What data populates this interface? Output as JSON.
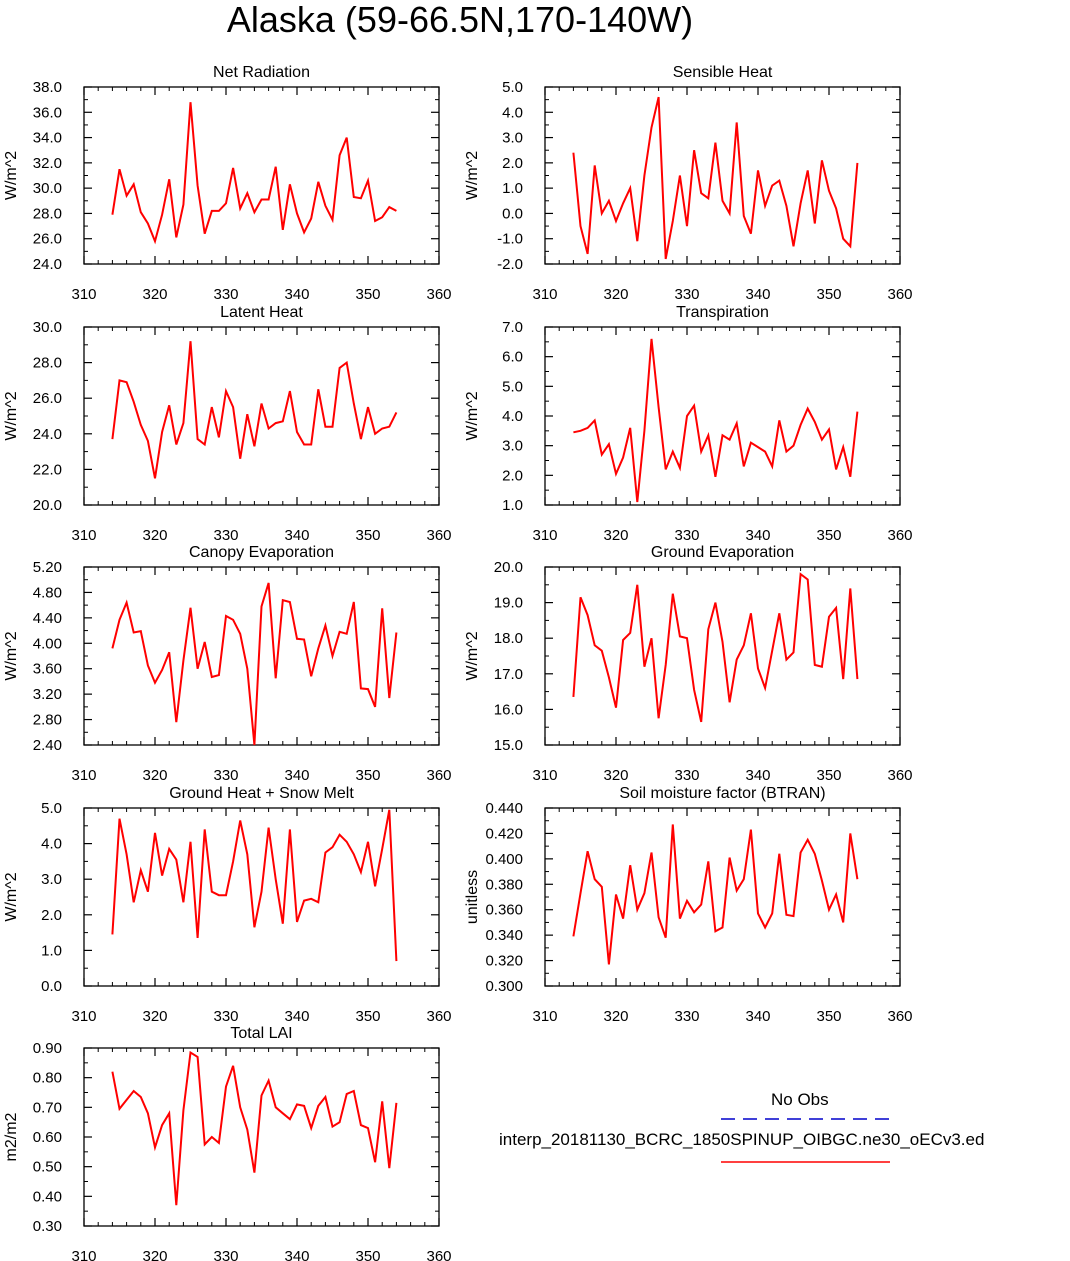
{
  "page_title": "Alaska (59-66.5N,170-140W)",
  "colors": {
    "line": "#ff0000",
    "axis": "#000000",
    "no_obs": "#0000cc"
  },
  "legend": {
    "no_obs": "No Obs",
    "model": "interp_20181130_BCRC_1850SPINUP_OIBGC.ne30_oECv3.ed"
  },
  "chart_data": [
    {
      "type": "line",
      "title": "Net Radiation",
      "ylabel": "W/m^2",
      "xlim": [
        310,
        360
      ],
      "ylim": [
        24,
        38
      ],
      "xticks": [
        "310",
        "320",
        "330",
        "340",
        "350",
        "360"
      ],
      "yticks": [
        "24.0",
        "26.0",
        "28.0",
        "30.0",
        "32.0",
        "34.0",
        "36.0",
        "38.0"
      ],
      "x": [
        314,
        315,
        316,
        317,
        318,
        319,
        320,
        321,
        322,
        323,
        324,
        325,
        326,
        327,
        328,
        329,
        330,
        331,
        332,
        333,
        334,
        335,
        336,
        337,
        338,
        339,
        340,
        341,
        342,
        343,
        344,
        345,
        346,
        347,
        348,
        349,
        350,
        351,
        352,
        353,
        354
      ],
      "values": [
        27.9,
        31.5,
        29.4,
        30.3,
        28.1,
        27.2,
        25.8,
        27.9,
        30.7,
        26.1,
        28.7,
        36.8,
        30.2,
        26.4,
        28.2,
        28.2,
        28.8,
        31.6,
        28.4,
        29.6,
        28.1,
        29.1,
        29.1,
        31.7,
        26.7,
        30.3,
        28.0,
        26.5,
        27.6,
        30.5,
        28.6,
        27.5,
        32.6,
        34.0,
        29.3,
        29.2,
        30.6,
        27.4,
        27.7,
        28.5,
        28.2
      ]
    },
    {
      "type": "line",
      "title": "Sensible Heat",
      "ylabel": "W/m^2",
      "xlim": [
        310,
        360
      ],
      "ylim": [
        -2,
        5
      ],
      "xticks": [
        "310",
        "320",
        "330",
        "340",
        "350",
        "360"
      ],
      "yticks": [
        "-2.0",
        "-1.0",
        "0.0",
        "1.0",
        "2.0",
        "3.0",
        "4.0",
        "5.0"
      ],
      "x": [
        314,
        315,
        316,
        317,
        318,
        319,
        320,
        321,
        322,
        323,
        324,
        325,
        326,
        327,
        328,
        329,
        330,
        331,
        332,
        333,
        334,
        335,
        336,
        337,
        338,
        339,
        340,
        341,
        342,
        343,
        344,
        345,
        346,
        347,
        348,
        349,
        350,
        351,
        352,
        353,
        354
      ],
      "values": [
        2.4,
        -0.5,
        -1.6,
        1.9,
        0.0,
        0.5,
        -0.3,
        0.4,
        1.0,
        -1.1,
        1.5,
        3.4,
        4.6,
        -1.8,
        -0.3,
        1.5,
        -0.5,
        2.5,
        0.8,
        0.6,
        2.8,
        0.5,
        0.0,
        3.6,
        -0.1,
        -0.8,
        1.7,
        0.3,
        1.1,
        1.3,
        0.3,
        -1.3,
        0.4,
        1.7,
        -0.4,
        2.1,
        0.9,
        0.2,
        -1.0,
        -1.3,
        2.0
      ]
    },
    {
      "type": "line",
      "title": "Latent Heat",
      "ylabel": "W/m^2",
      "xlim": [
        310,
        360
      ],
      "ylim": [
        20,
        30
      ],
      "xticks": [
        "310",
        "320",
        "330",
        "340",
        "350",
        "360"
      ],
      "yticks": [
        "20.0",
        "22.0",
        "24.0",
        "26.0",
        "28.0",
        "30.0"
      ],
      "x": [
        314,
        315,
        316,
        317,
        318,
        319,
        320,
        321,
        322,
        323,
        324,
        325,
        326,
        327,
        328,
        329,
        330,
        331,
        332,
        333,
        334,
        335,
        336,
        337,
        338,
        339,
        340,
        341,
        342,
        343,
        344,
        345,
        346,
        347,
        348,
        349,
        350,
        351,
        352,
        353,
        354
      ],
      "values": [
        23.7,
        27.0,
        26.9,
        25.8,
        24.5,
        23.6,
        21.5,
        24.1,
        25.6,
        23.4,
        24.6,
        29.2,
        23.7,
        23.4,
        25.5,
        23.8,
        26.4,
        25.5,
        22.6,
        25.1,
        23.3,
        25.7,
        24.3,
        24.6,
        24.7,
        26.4,
        24.1,
        23.4,
        23.4,
        26.5,
        24.4,
        24.4,
        27.7,
        28.0,
        25.7,
        23.7,
        25.5,
        24.0,
        24.3,
        24.4,
        25.2
      ]
    },
    {
      "type": "line",
      "title": "Transpiration",
      "ylabel": "W/m^2",
      "xlim": [
        310,
        360
      ],
      "ylim": [
        1,
        7
      ],
      "xticks": [
        "310",
        "320",
        "330",
        "340",
        "350",
        "360"
      ],
      "yticks": [
        "1.0",
        "2.0",
        "3.0",
        "4.0",
        "5.0",
        "6.0",
        "7.0"
      ],
      "x": [
        314,
        315,
        316,
        317,
        318,
        319,
        320,
        321,
        322,
        323,
        324,
        325,
        326,
        327,
        328,
        329,
        330,
        331,
        332,
        333,
        334,
        335,
        336,
        337,
        338,
        339,
        340,
        341,
        342,
        343,
        344,
        345,
        346,
        347,
        348,
        349,
        350,
        351,
        352,
        353,
        354
      ],
      "values": [
        3.45,
        3.5,
        3.6,
        3.85,
        2.7,
        3.05,
        2.05,
        2.6,
        3.6,
        1.1,
        3.5,
        6.6,
        4.3,
        2.2,
        2.8,
        2.25,
        4.0,
        4.35,
        2.8,
        3.35,
        1.95,
        3.35,
        3.2,
        3.75,
        2.3,
        3.1,
        2.95,
        2.8,
        2.3,
        3.85,
        2.8,
        3.0,
        3.7,
        4.25,
        3.8,
        3.2,
        3.55,
        2.2,
        2.95,
        1.95,
        4.15
      ]
    },
    {
      "type": "line",
      "title": "Canopy Evaporation",
      "ylabel": "W/m^2",
      "xlim": [
        310,
        360
      ],
      "ylim": [
        2.4,
        5.2
      ],
      "xticks": [
        "310",
        "320",
        "330",
        "340",
        "350",
        "360"
      ],
      "yticks": [
        "2.40",
        "2.80",
        "3.20",
        "3.60",
        "4.00",
        "4.40",
        "4.80",
        "5.20"
      ],
      "x": [
        314,
        315,
        316,
        317,
        318,
        319,
        320,
        321,
        322,
        323,
        324,
        325,
        326,
        327,
        328,
        329,
        330,
        331,
        332,
        333,
        334,
        335,
        336,
        337,
        338,
        339,
        340,
        341,
        342,
        343,
        344,
        345,
        346,
        347,
        348,
        349,
        350,
        351,
        352,
        353,
        354
      ],
      "values": [
        3.92,
        4.37,
        4.64,
        4.17,
        4.19,
        3.65,
        3.38,
        3.58,
        3.86,
        2.76,
        3.73,
        4.56,
        3.6,
        4.02,
        3.47,
        3.5,
        4.43,
        4.37,
        4.15,
        3.6,
        2.4,
        4.58,
        4.95,
        3.45,
        4.68,
        4.65,
        4.07,
        4.06,
        3.48,
        3.92,
        4.28,
        3.8,
        4.18,
        4.15,
        4.65,
        3.29,
        3.28,
        3.0,
        4.55,
        3.14,
        4.17
      ]
    },
    {
      "type": "line",
      "title": "Ground Evaporation",
      "ylabel": "W/m^2",
      "xlim": [
        310,
        360
      ],
      "ylim": [
        15,
        20
      ],
      "xticks": [
        "310",
        "320",
        "330",
        "340",
        "350",
        "360"
      ],
      "yticks": [
        "15.0",
        "16.0",
        "17.0",
        "18.0",
        "19.0",
        "20.0"
      ],
      "x": [
        314,
        315,
        316,
        317,
        318,
        319,
        320,
        321,
        322,
        323,
        324,
        325,
        326,
        327,
        328,
        329,
        330,
        331,
        332,
        333,
        334,
        335,
        336,
        337,
        338,
        339,
        340,
        341,
        342,
        343,
        344,
        345,
        346,
        347,
        348,
        349,
        350,
        351,
        352,
        353,
        354
      ],
      "values": [
        16.35,
        19.15,
        18.65,
        17.8,
        17.65,
        16.9,
        16.05,
        17.95,
        18.15,
        19.5,
        17.2,
        18.0,
        15.75,
        17.25,
        19.25,
        18.05,
        18.0,
        16.55,
        15.65,
        18.25,
        19.0,
        17.9,
        16.2,
        17.4,
        17.8,
        18.7,
        17.15,
        16.6,
        17.65,
        18.7,
        17.4,
        17.6,
        19.8,
        19.65,
        17.25,
        17.2,
        18.6,
        18.85,
        16.85,
        19.4,
        16.85
      ]
    },
    {
      "type": "line",
      "title": "Ground Heat + Snow Melt",
      "ylabel": "W/m^2",
      "xlim": [
        310,
        360
      ],
      "ylim": [
        0,
        5
      ],
      "xticks": [
        "310",
        "320",
        "330",
        "340",
        "350",
        "360"
      ],
      "yticks": [
        "0.0",
        "1.0",
        "2.0",
        "3.0",
        "4.0",
        "5.0"
      ],
      "x": [
        314,
        315,
        316,
        317,
        318,
        319,
        320,
        321,
        322,
        323,
        324,
        325,
        326,
        327,
        328,
        329,
        330,
        331,
        332,
        333,
        334,
        335,
        336,
        337,
        338,
        339,
        340,
        341,
        342,
        343,
        344,
        345,
        346,
        347,
        348,
        349,
        350,
        351,
        352,
        353,
        354
      ],
      "values": [
        1.45,
        4.7,
        3.7,
        2.35,
        3.25,
        2.65,
        4.3,
        3.1,
        3.85,
        3.55,
        2.35,
        4.05,
        1.35,
        4.4,
        2.65,
        2.55,
        2.55,
        3.5,
        4.65,
        3.7,
        1.65,
        2.65,
        4.45,
        3.0,
        1.75,
        4.4,
        1.8,
        2.4,
        2.45,
        2.35,
        3.75,
        3.9,
        4.25,
        4.05,
        3.7,
        3.2,
        4.05,
        2.8,
        3.85,
        4.95,
        0.7
      ]
    },
    {
      "type": "line",
      "title": "Soil moisture factor (BTRAN)",
      "ylabel": "unitless",
      "xlim": [
        310,
        360
      ],
      "ylim": [
        0.3,
        0.44
      ],
      "xticks": [
        "310",
        "320",
        "330",
        "340",
        "350",
        "360"
      ],
      "yticks": [
        "0.300",
        "0.320",
        "0.340",
        "0.360",
        "0.380",
        "0.400",
        "0.420",
        "0.440"
      ],
      "x": [
        314,
        315,
        316,
        317,
        318,
        319,
        320,
        321,
        322,
        323,
        324,
        325,
        326,
        327,
        328,
        329,
        330,
        331,
        332,
        333,
        334,
        335,
        336,
        337,
        338,
        339,
        340,
        341,
        342,
        343,
        344,
        345,
        346,
        347,
        348,
        349,
        350,
        351,
        352,
        353,
        354
      ],
      "values": [
        0.339,
        0.373,
        0.406,
        0.384,
        0.378,
        0.317,
        0.372,
        0.353,
        0.395,
        0.36,
        0.373,
        0.405,
        0.354,
        0.338,
        0.427,
        0.353,
        0.367,
        0.358,
        0.364,
        0.398,
        0.343,
        0.346,
        0.401,
        0.375,
        0.384,
        0.423,
        0.357,
        0.346,
        0.357,
        0.404,
        0.356,
        0.355,
        0.405,
        0.415,
        0.404,
        0.383,
        0.36,
        0.372,
        0.35,
        0.42,
        0.384
      ]
    },
    {
      "type": "line",
      "title": "Total LAI",
      "ylabel": "m2/m2",
      "xlim": [
        310,
        360
      ],
      "ylim": [
        0.3,
        0.9
      ],
      "xticks": [
        "310",
        "320",
        "330",
        "340",
        "350",
        "360"
      ],
      "yticks": [
        "0.30",
        "0.40",
        "0.50",
        "0.60",
        "0.70",
        "0.80",
        "0.90"
      ],
      "x": [
        314,
        315,
        316,
        317,
        318,
        319,
        320,
        321,
        322,
        323,
        324,
        325,
        326,
        327,
        328,
        329,
        330,
        331,
        332,
        333,
        334,
        335,
        336,
        337,
        338,
        339,
        340,
        341,
        342,
        343,
        344,
        345,
        346,
        347,
        348,
        349,
        350,
        351,
        352,
        353,
        354
      ],
      "values": [
        0.82,
        0.695,
        0.725,
        0.755,
        0.735,
        0.68,
        0.565,
        0.64,
        0.68,
        0.37,
        0.69,
        0.885,
        0.87,
        0.575,
        0.6,
        0.58,
        0.77,
        0.84,
        0.7,
        0.625,
        0.48,
        0.74,
        0.79,
        0.7,
        0.68,
        0.66,
        0.71,
        0.705,
        0.63,
        0.705,
        0.735,
        0.635,
        0.65,
        0.745,
        0.755,
        0.64,
        0.63,
        0.515,
        0.72,
        0.495,
        0.715
      ]
    }
  ]
}
